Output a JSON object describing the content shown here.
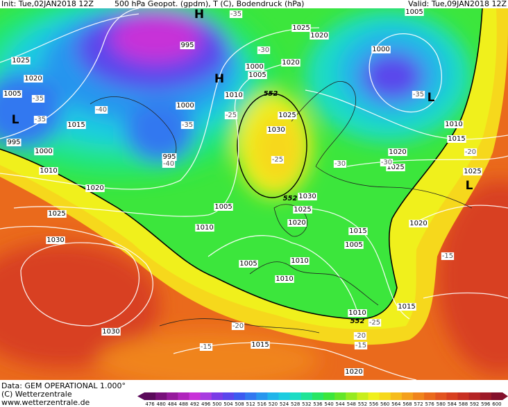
{
  "header": {
    "init": "Init: Tue,02JAN2018 12Z",
    "title": "500 hPa Geopot. (gpdm), T (C), Bodendruck (hPa)",
    "valid": "Valid: Tue,09JAN2018 12Z"
  },
  "footer": {
    "data": "Data: GEM OPERATIONAL 1.000°",
    "copyright": "(C) Wetterzentrale",
    "url": "www.wetterzentrale.de"
  },
  "legend": {
    "values": [
      476,
      480,
      484,
      488,
      492,
      496,
      500,
      504,
      508,
      512,
      516,
      520,
      524,
      528,
      532,
      536,
      540,
      544,
      548,
      552,
      556,
      560,
      564,
      568,
      572,
      576,
      580,
      584,
      588,
      592,
      596,
      600
    ],
    "colors": [
      "#5a0a5a",
      "#78107a",
      "#961a9c",
      "#b024bc",
      "#c832d8",
      "#a83ce0",
      "#7a3ce6",
      "#5a46ec",
      "#3c5af0",
      "#3278f0",
      "#2896ee",
      "#20b4ea",
      "#1ccce0",
      "#1cdcc4",
      "#20e496",
      "#28e664",
      "#3ce63c",
      "#64e628",
      "#96ea20",
      "#c8ee1c",
      "#f0f01c",
      "#f6d81c",
      "#f6bc1c",
      "#f4a01c",
      "#f0841c",
      "#ea6a1c",
      "#e25420",
      "#d84020",
      "#c83022",
      "#b42424",
      "#9c1a28",
      "#84102c"
    ]
  },
  "map_labels": {
    "pressure": [
      "1025",
      "1020",
      "1005",
      "1015",
      "995",
      "1000",
      "1010",
      "1020",
      "1025",
      "1030",
      "1030",
      "995",
      "1000",
      "995",
      "1005",
      "1010",
      "1005",
      "1010",
      "1010",
      "1015",
      "1000",
      "1005",
      "1010",
      "1020",
      "1025",
      "1020",
      "1025",
      "1030",
      "1030",
      "1025",
      "1020",
      "1015",
      "1005",
      "1020",
      "1025",
      "1010",
      "1015",
      "1025",
      "1020",
      "1015",
      "1010",
      "1020",
      "1000",
      "1005"
    ],
    "temperature": [
      "-35",
      "-30",
      "-25",
      "-35",
      "-40",
      "-40",
      "-35",
      "-35",
      "-25",
      "-30",
      "-30",
      "-35",
      "-20",
      "-15",
      "-20",
      "-15",
      "-20",
      "-15",
      "-25"
    ],
    "centers": [
      "H",
      "H",
      "L",
      "L",
      "L"
    ],
    "contour_552": [
      "552",
      "552",
      "552"
    ]
  }
}
